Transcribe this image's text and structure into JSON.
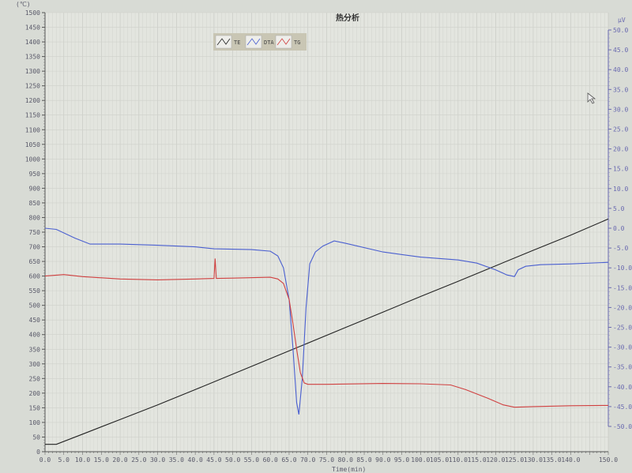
{
  "window": {
    "title": "热分析"
  },
  "legend": [
    {
      "label": "TE",
      "color": "#222222"
    },
    {
      "label": "DTA",
      "color": "#4a5fd0"
    },
    {
      "label": "TG",
      "color": "#d04040"
    }
  ],
  "chart_data": {
    "type": "line",
    "title": "热分析",
    "xlabel": "Time(min)",
    "ylabel_left": "(℃)",
    "ylabel_right": "μV",
    "xlim": [
      0,
      150
    ],
    "ylim_left": [
      0,
      1500
    ],
    "ylim_right": [
      -50,
      50
    ],
    "x_ticks": [
      "0.0",
      "5.0",
      "10.0",
      "15.0",
      "20.0",
      "25.0",
      "30.0",
      "35.0",
      "40.0",
      "45.0",
      "50.0",
      "55.0",
      "60.0",
      "65.0",
      "70.0",
      "75.0",
      "80.0",
      "85.0",
      "90.0",
      "95.0",
      "100.0",
      "105.0",
      "110.0",
      "115.0",
      "120.0",
      "125.0",
      "130.0",
      "135.0",
      "140.0",
      "150.0"
    ],
    "y_ticks_left": [
      0,
      50,
      100,
      150,
      200,
      250,
      300,
      350,
      400,
      450,
      500,
      550,
      600,
      650,
      700,
      750,
      800,
      850,
      900,
      950,
      1000,
      1050,
      1100,
      1150,
      1200,
      1250,
      1300,
      1350,
      1400,
      1450,
      1500
    ],
    "y_ticks_right": [
      "50.0",
      "45.0",
      "40.0",
      "35.0",
      "30.0",
      "25.0",
      "20.0",
      "15.0",
      "10.0",
      "5.0",
      "0.0",
      "-5.0",
      "-10.0",
      "-15.0",
      "-20.0",
      "-25.0",
      "-30.0",
      "-35.0",
      "-40.0",
      "-45.0",
      "-50.0"
    ],
    "grid": true,
    "legend_position": "top-left",
    "series": [
      {
        "name": "TE",
        "axis": "left",
        "color": "#222222",
        "x": [
          0,
          3,
          10,
          20,
          30,
          40,
          50,
          60,
          67,
          80,
          90,
          100,
          110,
          120,
          130,
          140,
          150
        ],
        "y": [
          25,
          25,
          60,
          110,
          160,
          212,
          265,
          318,
          355,
          424,
          477,
          530,
          582,
          635,
          688,
          740,
          795
        ]
      },
      {
        "name": "DTA",
        "axis": "right",
        "color": "#4a5fd0",
        "x": [
          0,
          3,
          8,
          12,
          20,
          30,
          40,
          45,
          55,
          60,
          62,
          63.5,
          65,
          66,
          67,
          67.6,
          68.5,
          69.5,
          70.5,
          72,
          74,
          77,
          80,
          90,
          100,
          110,
          115,
          120,
          123,
          125,
          126,
          128,
          132,
          140,
          150
        ],
        "y": [
          0,
          -0.3,
          -2.5,
          -4,
          -4,
          -4.3,
          -4.7,
          -5.2,
          -5.4,
          -5.8,
          -7,
          -10,
          -18,
          -30,
          -44,
          -47,
          -38,
          -20,
          -9,
          -6,
          -4.5,
          -3.2,
          -3.8,
          -6,
          -7.3,
          -8,
          -8.8,
          -10.5,
          -11.8,
          -12.2,
          -10.5,
          -9.6,
          -9.2,
          -9,
          -8.6
        ]
      },
      {
        "name": "TG",
        "axis": "left",
        "color": "#d04040",
        "x": [
          0,
          5,
          10,
          20,
          30,
          40,
          45,
          45.3,
          45.6,
          50,
          60,
          62,
          63.5,
          65,
          66,
          67,
          68,
          69,
          70,
          75,
          90,
          100,
          108,
          112,
          118,
          122,
          125,
          130,
          140,
          150
        ],
        "y": [
          600,
          605,
          598,
          590,
          587,
          590,
          592,
          660,
          592,
          593,
          596,
          590,
          575,
          520,
          440,
          350,
          270,
          235,
          230,
          230,
          233,
          232,
          228,
          212,
          182,
          160,
          152,
          154,
          157,
          158
        ]
      }
    ]
  }
}
